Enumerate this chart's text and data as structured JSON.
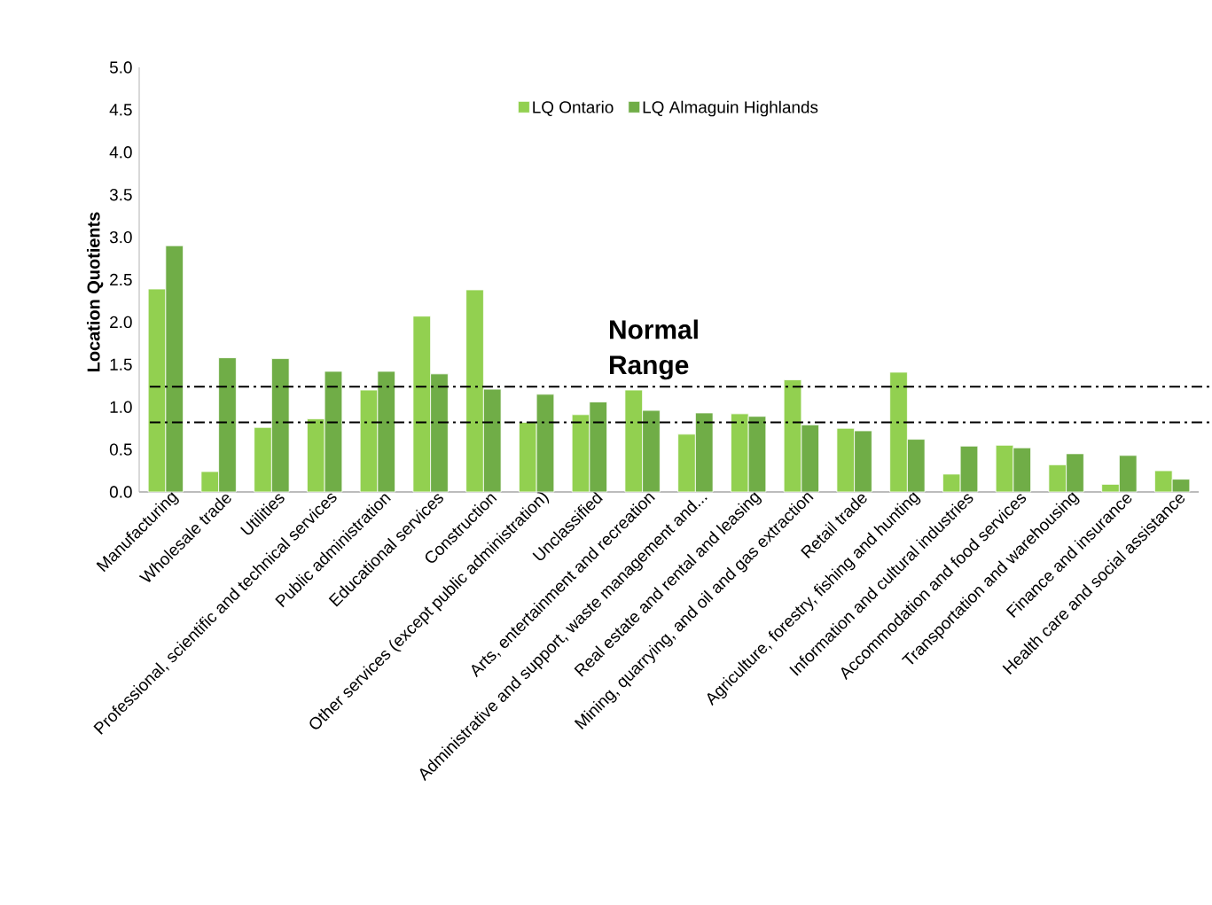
{
  "chart_data": {
    "type": "bar",
    "categories": [
      "Manufacturing",
      "Wholesale trade",
      "Utilities",
      "Professional, scientific and technical services",
      "Public administration",
      "Educational services",
      "Construction",
      "Other services (except public administration)",
      "Unclassified",
      "Arts, entertainment and recreation",
      "Administrative and support, waste management and...",
      "Real estate and rental and leasing",
      "Mining, quarrying, and oil and gas extraction",
      "Retail trade",
      "Agriculture, forestry, fishing and hunting",
      "Information and cultural industries",
      "Accommodation and food services",
      "Transportation and warehousing",
      "Finance and insurance",
      "Health care and social assistance"
    ],
    "series": [
      {
        "name": "LQ Ontario",
        "color": "#92d050",
        "values": [
          2.39,
          0.24,
          0.76,
          0.86,
          1.2,
          2.07,
          2.38,
          0.82,
          0.91,
          1.2,
          0.68,
          0.92,
          1.32,
          0.75,
          1.41,
          0.21,
          0.55,
          0.32,
          0.09,
          0.25
        ]
      },
      {
        "name": "LQ Almaguin Highlands",
        "color": "#70ad47",
        "values": [
          2.9,
          1.58,
          1.57,
          1.42,
          1.42,
          1.39,
          1.21,
          1.15,
          1.06,
          0.96,
          0.93,
          0.89,
          0.79,
          0.72,
          0.62,
          0.54,
          0.52,
          0.45,
          0.43,
          0.15
        ]
      }
    ],
    "ylabel": "Location Quotients",
    "ylim": [
      0,
      5
    ],
    "yticks": [
      {
        "value": 0,
        "label": "0.0"
      },
      {
        "value": 0.5,
        "label": "0.5"
      },
      {
        "value": 1,
        "label": "1.0"
      },
      {
        "value": 1.5,
        "label": "1.5"
      },
      {
        "value": 2,
        "label": "2.0"
      },
      {
        "value": 2.5,
        "label": "2.5"
      },
      {
        "value": 3,
        "label": "3.0"
      },
      {
        "value": 3.5,
        "label": "3.5"
      },
      {
        "value": 4,
        "label": "4.0"
      },
      {
        "value": 4.5,
        "label": "4.5"
      },
      {
        "value": 5,
        "label": "5.0"
      }
    ],
    "ref_lines": [
      {
        "axis": "y",
        "value": 1.24,
        "line_style": "dashdot",
        "color": "#000000"
      },
      {
        "axis": "y",
        "value": 0.82,
        "line_style": "dashdot",
        "color": "#000000"
      }
    ],
    "annotations": [
      "**Normal Range**"
    ],
    "legend": "top",
    "grid": false
  }
}
